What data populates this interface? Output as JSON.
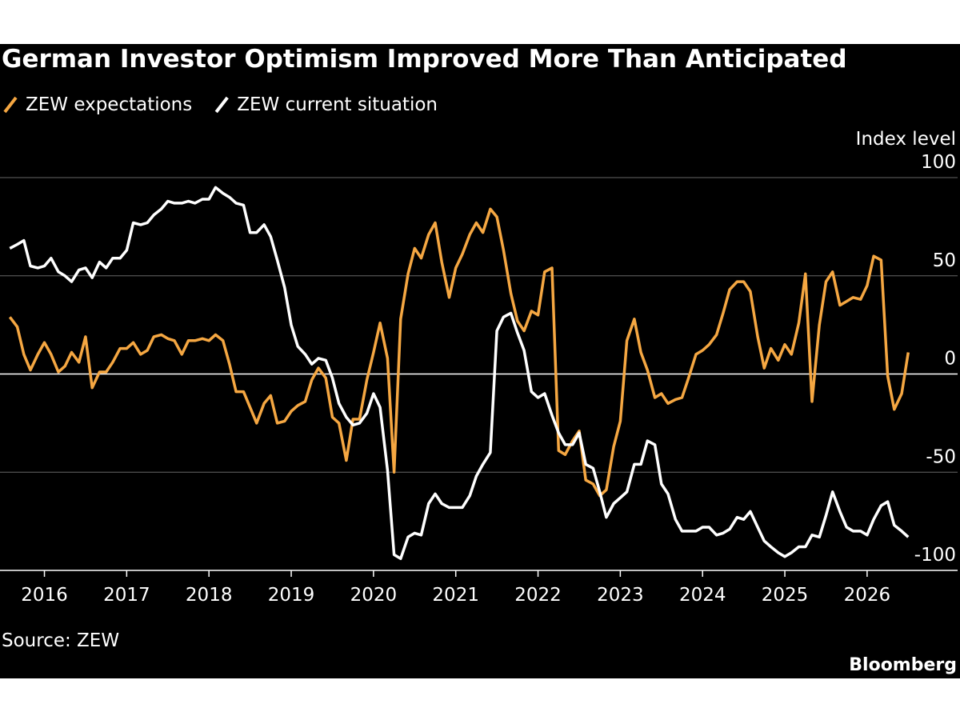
{
  "chart_data": {
    "type": "line",
    "title": "German Investor Optimism Improved More Than Anticipated",
    "y_label": "Index level",
    "source": "Source: ZEW",
    "brand": "Bloomberg",
    "x": [
      2015.58,
      2015.67,
      2015.75,
      2015.83,
      2015.92,
      2016.0,
      2016.08,
      2016.17,
      2016.25,
      2016.33,
      2016.42,
      2016.5,
      2016.58,
      2016.67,
      2016.75,
      2016.83,
      2016.92,
      2017.0,
      2017.08,
      2017.17,
      2017.25,
      2017.33,
      2017.42,
      2017.5,
      2017.58,
      2017.67,
      2017.75,
      2017.83,
      2017.92,
      2018.0,
      2018.08,
      2018.17,
      2018.25,
      2018.33,
      2018.42,
      2018.5,
      2018.58,
      2018.67,
      2018.75,
      2018.83,
      2018.92,
      2019.0,
      2019.08,
      2019.17,
      2019.25,
      2019.33,
      2019.42,
      2019.5,
      2019.58,
      2019.67,
      2019.75,
      2019.83,
      2019.92,
      2020.0,
      2020.08,
      2020.17,
      2020.25,
      2020.33,
      2020.42,
      2020.5,
      2020.58,
      2020.67,
      2020.75,
      2020.83,
      2020.92,
      2021.0,
      2021.08,
      2021.17,
      2021.25,
      2021.33,
      2021.42,
      2021.5,
      2021.58,
      2021.67,
      2021.75,
      2021.83,
      2021.92,
      2022.0,
      2022.08,
      2022.17,
      2022.25,
      2022.33,
      2022.42,
      2022.5,
      2022.58,
      2022.67,
      2022.75,
      2022.83,
      2022.92,
      2023.0,
      2023.08,
      2023.17,
      2023.25,
      2023.33,
      2023.42,
      2023.5,
      2023.58,
      2023.67,
      2023.75,
      2023.83,
      2023.92,
      2024.0,
      2024.08,
      2024.17,
      2024.25,
      2024.33,
      2024.42,
      2024.5,
      2024.58,
      2024.67,
      2024.75,
      2024.83,
      2024.92,
      2025.0,
      2025.08,
      2025.17,
      2025.25,
      2025.33,
      2025.42,
      2025.5,
      2025.58,
      2025.67,
      2025.75,
      2025.83,
      2025.92,
      2026.0,
      2026.08,
      2026.17,
      2026.25,
      2026.33,
      2026.42,
      2026.5
    ],
    "series": [
      {
        "name": "ZEW expectations",
        "color": "#f5a742",
        "values": [
          29,
          24,
          10,
          2,
          10,
          16,
          10,
          1,
          4,
          11,
          6,
          19,
          -7,
          1,
          1,
          6,
          13,
          13,
          16,
          10,
          12,
          19,
          20,
          18,
          17,
          10,
          17,
          17,
          18,
          17,
          20,
          17,
          5,
          -9,
          -9,
          -17,
          -25,
          -15,
          -11,
          -25,
          -24,
          -19,
          -16,
          -14,
          -3,
          3,
          -2,
          -22,
          -25,
          -44,
          -23,
          -23,
          -3,
          11,
          26,
          8,
          -50,
          28,
          51,
          64,
          59,
          71,
          77,
          57,
          39,
          54,
          61,
          71,
          77,
          72,
          84,
          80,
          63,
          41,
          27,
          22,
          32,
          30,
          52,
          54,
          -39,
          -41,
          -34,
          -29,
          -54,
          -56,
          -62,
          -59,
          -37,
          -24,
          17,
          28,
          11,
          2,
          -12,
          -10,
          -15,
          -13,
          -12,
          -2,
          10,
          12,
          15,
          20,
          31,
          43,
          47,
          47,
          42,
          19,
          3,
          13,
          7,
          15,
          10,
          26,
          51,
          -14,
          25,
          47,
          52,
          35,
          37,
          39,
          38,
          45,
          60,
          58,
          -1,
          -18,
          -10,
          11
        ]
      },
      {
        "name": "ZEW current situation",
        "color": "#ffffff",
        "values": [
          64,
          66,
          68,
          55,
          54,
          55,
          59,
          52,
          50,
          47,
          53,
          54,
          49,
          57,
          54,
          59,
          59,
          63,
          77,
          76,
          77,
          81,
          84,
          88,
          87,
          87,
          88,
          87,
          89,
          89,
          95,
          92,
          90,
          87,
          86,
          72,
          72,
          76,
          70,
          58,
          44,
          25,
          14,
          10,
          5,
          8,
          7,
          -2,
          -15,
          -22,
          -26,
          -25,
          -20,
          -10,
          -17,
          -49,
          -92,
          -94,
          -83,
          -81,
          -82,
          -66,
          -61,
          -66,
          -68,
          -68,
          -68,
          -62,
          -52,
          -46,
          -40,
          22,
          29,
          31,
          21,
          12,
          -9,
          -12,
          -10,
          -21,
          -30,
          -36,
          -36,
          -30,
          -46,
          -48,
          -60,
          -73,
          -66,
          -63,
          -60,
          -46,
          -46,
          -34,
          -36,
          -56,
          -61,
          -74,
          -80,
          -80,
          -80,
          -78,
          -78,
          -82,
          -81,
          -79,
          -73,
          -74,
          -70,
          -78,
          -85,
          -88,
          -91,
          -93,
          -91,
          -88,
          -88,
          -82,
          -83,
          -72,
          -60,
          -70,
          -78,
          -80,
          -80,
          -82,
          -74,
          -67,
          -65,
          -77,
          -80,
          -83
        ]
      }
    ],
    "xlim": [
      2015.46,
      2027.1
    ],
    "xticks": [
      2016,
      2017,
      2018,
      2019,
      2020,
      2021,
      2022,
      2023,
      2024,
      2025,
      2026
    ],
    "ylim": [
      -100,
      100
    ],
    "yticks": [
      -100,
      -50,
      0,
      50,
      100
    ],
    "grid": true
  }
}
